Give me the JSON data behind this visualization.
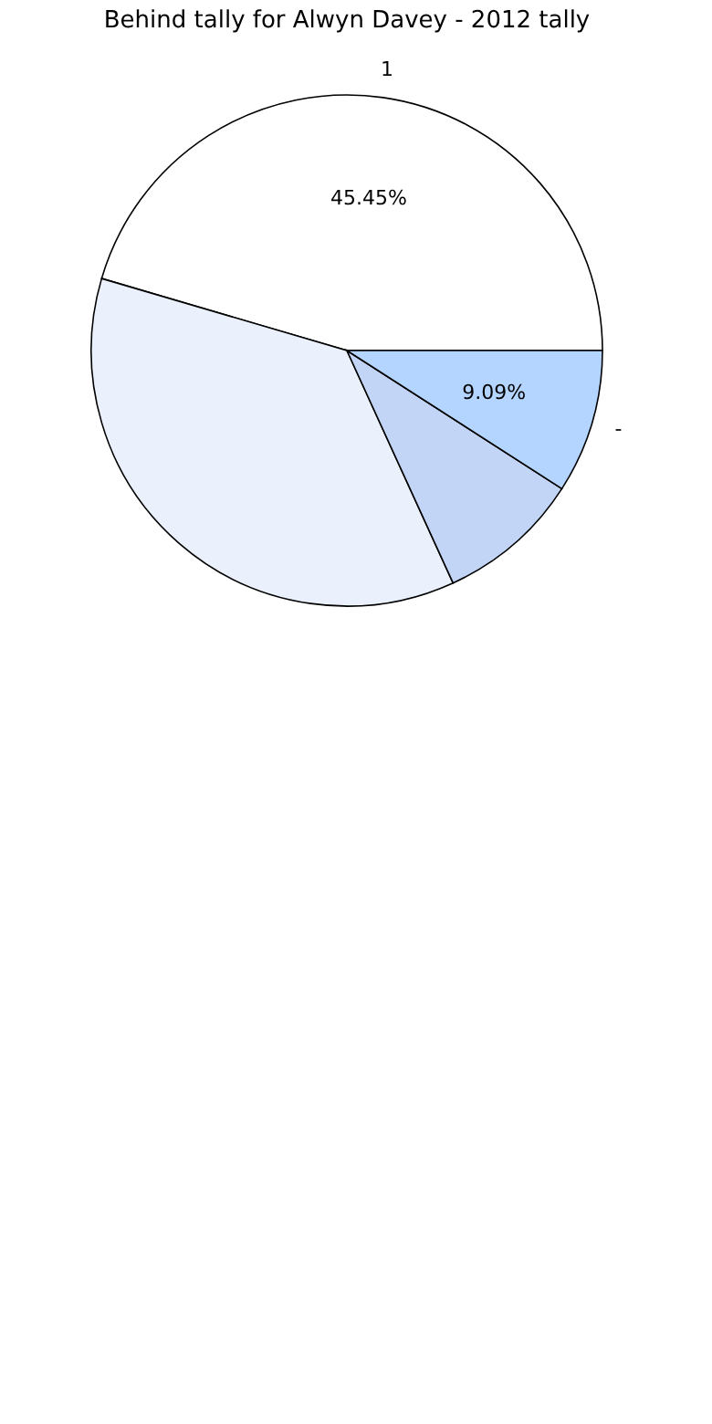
{
  "chart_data": {
    "type": "pie",
    "title": "Behind tally for Alwyn Davey - 2012 tally",
    "categories": [
      "1",
      null,
      null,
      "-"
    ],
    "values": [
      45.45,
      36.36,
      9.09,
      9.09
    ],
    "colors": [
      "#ffffff",
      "#eaf1fd",
      "#c3d5f7",
      "#b3d5ff"
    ],
    "value_labels": [
      "45.45%",
      null,
      null,
      "9.09%"
    ]
  }
}
